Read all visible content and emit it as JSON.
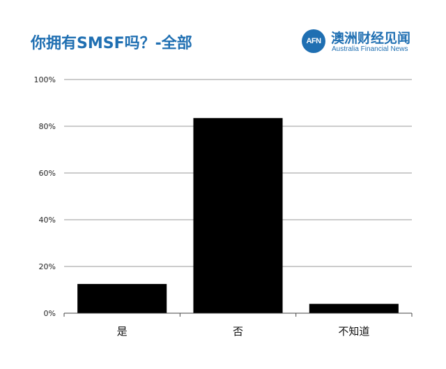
{
  "header": {
    "title": "你拥有SMSF吗？-全部",
    "logo_badge": "AFN",
    "logo_cn": "澳洲财经见闻",
    "logo_en": "Australia Financial News"
  },
  "colors": {
    "accent": "#1f6fb2",
    "bar": "#000000",
    "grid": "#9a9a9a"
  },
  "chart_data": {
    "type": "bar",
    "title": "你拥有SMSF吗？-全部",
    "categories": [
      "是",
      "否",
      "不知道"
    ],
    "values": [
      12.5,
      83.5,
      4
    ],
    "ylim": [
      0,
      100
    ],
    "yticks": [
      0,
      20,
      40,
      60,
      80,
      100
    ],
    "ytick_labels": [
      "0%",
      "20%",
      "40%",
      "60%",
      "80%",
      "100%"
    ],
    "grid": true,
    "legend": "none"
  }
}
